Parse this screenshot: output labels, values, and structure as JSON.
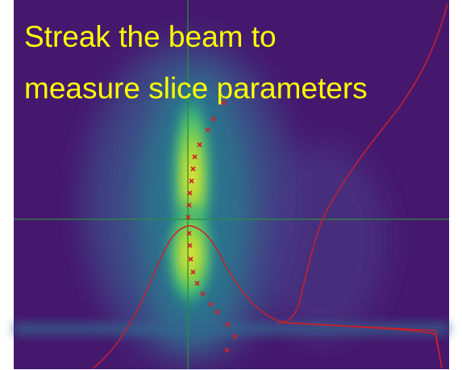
{
  "title": {
    "lines": [
      "Streak the beam to",
      "measure slice parameters"
    ]
  }
}
